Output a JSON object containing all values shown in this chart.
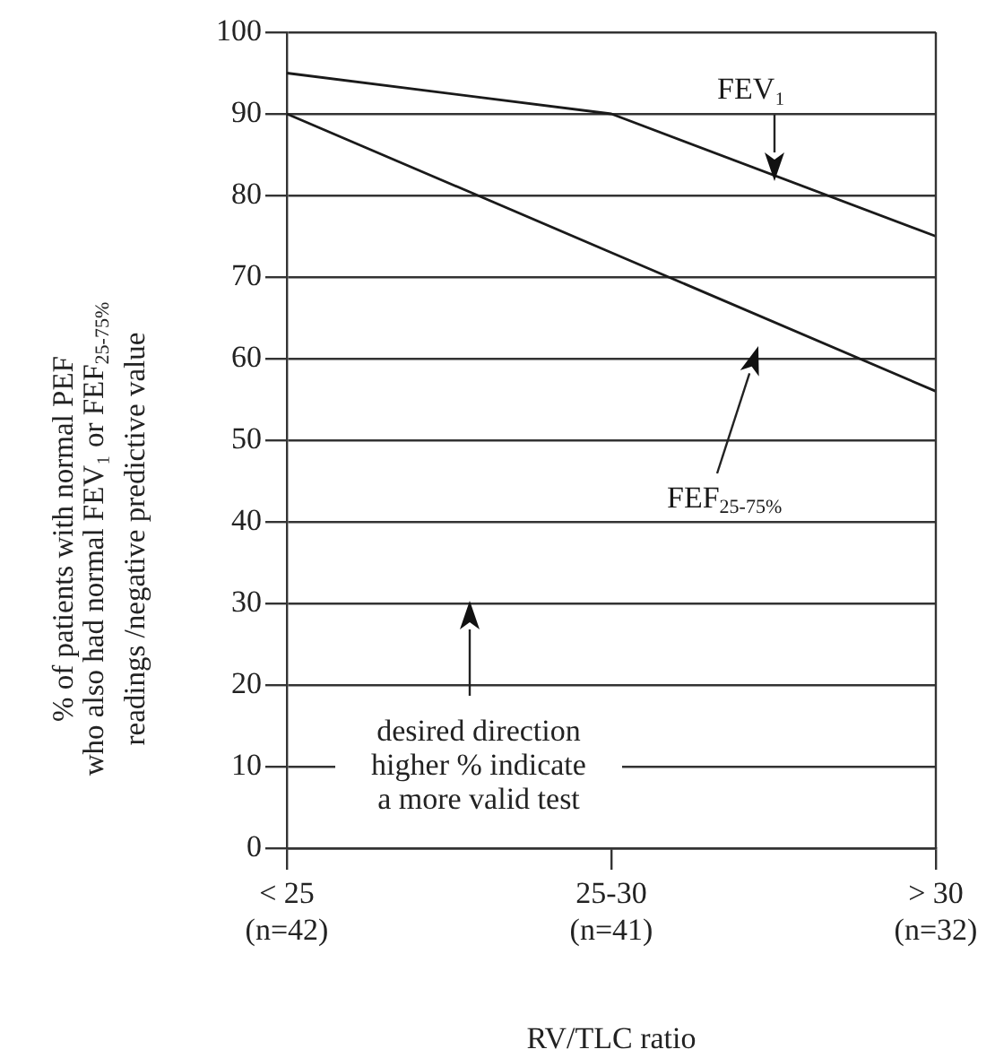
{
  "chart_data": {
    "type": "line",
    "categories": [
      "< 25\n(n=42)",
      "25-30\n(n=41)",
      "> 30\n(n=32)"
    ],
    "xlabel": "RV/TLC ratio",
    "ylabel": "% of patients with normal PEF\nwho also had normal FEV₁ or FEF$_{25-75%}$\nreadings /negative predictive value",
    "series": [
      {
        "name": "FEV₁",
        "color": "#1a1a1a",
        "values": [
          95,
          90,
          75
        ]
      },
      {
        "name": "FEF$_{25-75%}$",
        "color": "#1a1a1a",
        "values": [
          90,
          73,
          56
        ]
      }
    ],
    "ylim": [
      0,
      100
    ],
    "yticks": [
      0,
      10,
      20,
      30,
      40,
      50,
      60,
      70,
      80,
      90,
      100
    ],
    "grid": "y",
    "legend": false,
    "marker": "none",
    "line_style": "solid",
    "annotations": [
      "desired direction\nhigher % indicate\na more valid test"
    ]
  }
}
